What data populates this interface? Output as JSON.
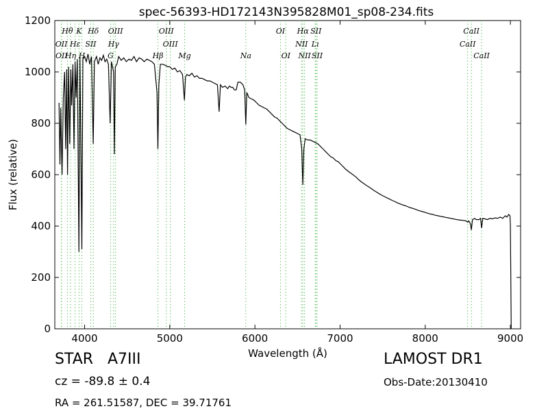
{
  "info": {
    "object_class": "STAR   A7III",
    "cz": "cz = -89.8 ± 0.4",
    "survey": "LAMOST DR1",
    "obs_date": "Obs-Date:20130410",
    "radec": "RA = 261.51587, DEC = 39.71761"
  },
  "chart_data": {
    "type": "line",
    "title": "spec-56393-HD172143N395828M01_sp08-234.fits",
    "xlabel": "Wavelength (Å)",
    "ylabel": "Flux (relative)",
    "xlim": [
      3650,
      9120
    ],
    "ylim": [
      0,
      1200
    ],
    "grid": false,
    "x_ticks": [
      4000,
      5000,
      6000,
      7000,
      8000,
      9000
    ],
    "y_ticks": [
      0,
      200,
      400,
      600,
      800,
      1000,
      1200
    ],
    "series": [
      {
        "color": "#000000",
        "points": [
          [
            3700,
            880
          ],
          [
            3710,
            640
          ],
          [
            3720,
            860
          ],
          [
            3735,
            600
          ],
          [
            3750,
            900
          ],
          [
            3765,
            1000
          ],
          [
            3778,
            700
          ],
          [
            3790,
            1010
          ],
          [
            3800,
            600
          ],
          [
            3812,
            1020
          ],
          [
            3825,
            720
          ],
          [
            3838,
            1010
          ],
          [
            3848,
            870
          ],
          [
            3862,
            1030
          ],
          [
            3875,
            700
          ],
          [
            3888,
            1040
          ],
          [
            3900,
            900
          ],
          [
            3915,
            1050
          ],
          [
            3933,
            300
          ],
          [
            3945,
            1060
          ],
          [
            3955,
            760
          ],
          [
            3968,
            310
          ],
          [
            3980,
            1050
          ],
          [
            4000,
            1060
          ],
          [
            4020,
            1040
          ],
          [
            4040,
            1070
          ],
          [
            4060,
            1030
          ],
          [
            4080,
            1060
          ],
          [
            4101,
            720
          ],
          [
            4115,
            1040
          ],
          [
            4140,
            1060
          ],
          [
            4160,
            1030
          ],
          [
            4180,
            1055
          ],
          [
            4200,
            1045
          ],
          [
            4220,
            1065
          ],
          [
            4240,
            1040
          ],
          [
            4260,
            1050
          ],
          [
            4280,
            1030
          ],
          [
            4300,
            800
          ],
          [
            4315,
            1040
          ],
          [
            4340,
            1000
          ],
          [
            4350,
            680
          ],
          [
            4360,
            1020
          ],
          [
            4380,
            1030
          ],
          [
            4400,
            1060
          ],
          [
            4430,
            1045
          ],
          [
            4460,
            1055
          ],
          [
            4490,
            1040
          ],
          [
            4520,
            1050
          ],
          [
            4550,
            1045
          ],
          [
            4580,
            1060
          ],
          [
            4610,
            1040
          ],
          [
            4640,
            1055
          ],
          [
            4670,
            1050
          ],
          [
            4700,
            1040
          ],
          [
            4730,
            1050
          ],
          [
            4760,
            1045
          ],
          [
            4790,
            1040
          ],
          [
            4820,
            1030
          ],
          [
            4850,
            920
          ],
          [
            4861,
            700
          ],
          [
            4872,
            950
          ],
          [
            4890,
            1030
          ],
          [
            4920,
            1030
          ],
          [
            4950,
            1025
          ],
          [
            4980,
            1020
          ],
          [
            5000,
            1020
          ],
          [
            5030,
            1010
          ],
          [
            5060,
            1015
          ],
          [
            5090,
            1000
          ],
          [
            5120,
            1005
          ],
          [
            5150,
            990
          ],
          [
            5172,
            890
          ],
          [
            5185,
            980
          ],
          [
            5200,
            990
          ],
          [
            5230,
            985
          ],
          [
            5260,
            995
          ],
          [
            5290,
            980
          ],
          [
            5320,
            985
          ],
          [
            5350,
            975
          ],
          [
            5380,
            975
          ],
          [
            5410,
            970
          ],
          [
            5440,
            965
          ],
          [
            5470,
            965
          ],
          [
            5500,
            960
          ],
          [
            5530,
            955
          ],
          [
            5560,
            950
          ],
          [
            5580,
            845
          ],
          [
            5595,
            950
          ],
          [
            5620,
            940
          ],
          [
            5650,
            945
          ],
          [
            5680,
            935
          ],
          [
            5700,
            945
          ],
          [
            5720,
            940
          ],
          [
            5740,
            940
          ],
          [
            5760,
            930
          ],
          [
            5780,
            930
          ],
          [
            5800,
            960
          ],
          [
            5830,
            960
          ],
          [
            5860,
            950
          ],
          [
            5880,
            930
          ],
          [
            5893,
            795
          ],
          [
            5905,
            920
          ],
          [
            5930,
            900
          ],
          [
            5960,
            895
          ],
          [
            5990,
            890
          ],
          [
            6020,
            880
          ],
          [
            6050,
            870
          ],
          [
            6080,
            865
          ],
          [
            6110,
            860
          ],
          [
            6140,
            855
          ],
          [
            6170,
            845
          ],
          [
            6200,
            835
          ],
          [
            6230,
            825
          ],
          [
            6260,
            820
          ],
          [
            6290,
            810
          ],
          [
            6320,
            800
          ],
          [
            6350,
            790
          ],
          [
            6380,
            780
          ],
          [
            6410,
            775
          ],
          [
            6440,
            770
          ],
          [
            6470,
            765
          ],
          [
            6500,
            760
          ],
          [
            6530,
            755
          ],
          [
            6550,
            700
          ],
          [
            6563,
            560
          ],
          [
            6575,
            700
          ],
          [
            6590,
            740
          ],
          [
            6620,
            735
          ],
          [
            6650,
            735
          ],
          [
            6680,
            730
          ],
          [
            6710,
            725
          ],
          [
            6740,
            720
          ],
          [
            6770,
            710
          ],
          [
            6800,
            700
          ],
          [
            6830,
            690
          ],
          [
            6860,
            680
          ],
          [
            6890,
            670
          ],
          [
            6920,
            665
          ],
          [
            6950,
            655
          ],
          [
            6980,
            650
          ],
          [
            7010,
            640
          ],
          [
            7040,
            630
          ],
          [
            7070,
            620
          ],
          [
            7100,
            612
          ],
          [
            7130,
            605
          ],
          [
            7160,
            598
          ],
          [
            7190,
            590
          ],
          [
            7220,
            580
          ],
          [
            7250,
            572
          ],
          [
            7280,
            565
          ],
          [
            7310,
            558
          ],
          [
            7340,
            552
          ],
          [
            7370,
            545
          ],
          [
            7400,
            538
          ],
          [
            7430,
            532
          ],
          [
            7460,
            526
          ],
          [
            7490,
            520
          ],
          [
            7520,
            515
          ],
          [
            7550,
            510
          ],
          [
            7580,
            505
          ],
          [
            7610,
            500
          ],
          [
            7640,
            496
          ],
          [
            7670,
            491
          ],
          [
            7700,
            487
          ],
          [
            7730,
            483
          ],
          [
            7760,
            480
          ],
          [
            7790,
            476
          ],
          [
            7820,
            472
          ],
          [
            7850,
            469
          ],
          [
            7880,
            466
          ],
          [
            7910,
            462
          ],
          [
            7940,
            459
          ],
          [
            7970,
            456
          ],
          [
            8000,
            453
          ],
          [
            8030,
            450
          ],
          [
            8060,
            447
          ],
          [
            8090,
            445
          ],
          [
            8120,
            442
          ],
          [
            8150,
            440
          ],
          [
            8180,
            438
          ],
          [
            8210,
            436
          ],
          [
            8240,
            434
          ],
          [
            8270,
            432
          ],
          [
            8300,
            430
          ],
          [
            8330,
            428
          ],
          [
            8360,
            426
          ],
          [
            8390,
            424
          ],
          [
            8420,
            423
          ],
          [
            8450,
            422
          ],
          [
            8480,
            420
          ],
          [
            8500,
            415
          ],
          [
            8510,
            420
          ],
          [
            8530,
            410
          ],
          [
            8542,
            385
          ],
          [
            8555,
            425
          ],
          [
            8580,
            430
          ],
          [
            8600,
            425
          ],
          [
            8630,
            425
          ],
          [
            8650,
            430
          ],
          [
            8662,
            392
          ],
          [
            8675,
            430
          ],
          [
            8700,
            428
          ],
          [
            8730,
            425
          ],
          [
            8760,
            430
          ],
          [
            8790,
            428
          ],
          [
            8820,
            432
          ],
          [
            8850,
            430
          ],
          [
            8880,
            435
          ],
          [
            8910,
            430
          ],
          [
            8940,
            440
          ],
          [
            8960,
            435
          ],
          [
            8980,
            445
          ],
          [
            8995,
            440
          ],
          [
            9000,
            400
          ],
          [
            9010,
            0
          ]
        ]
      }
    ],
    "lines": [
      {
        "label": "H𝜃",
        "x": 3798,
        "row": 1,
        "kind": "emission"
      },
      {
        "label": "K",
        "x": 3934,
        "row": 1,
        "kind": "emission"
      },
      {
        "label": "Hδ",
        "x": 4102,
        "row": 1,
        "kind": "emission"
      },
      {
        "label": "OIII",
        "x": 4363,
        "row": 1,
        "kind": "emission"
      },
      {
        "label": "OIII",
        "x": 4959,
        "row": 1,
        "kind": "emission"
      },
      {
        "label": "OI",
        "x": 6300,
        "row": 1,
        "kind": "emission"
      },
      {
        "label": "Hα",
        "x": 6563,
        "row": 1,
        "kind": "emission"
      },
      {
        "label": "SII",
        "x": 6717,
        "row": 1,
        "kind": "emission"
      },
      {
        "label": "CaII",
        "x": 8542,
        "row": 1,
        "kind": "absorption"
      },
      {
        "label": "OII",
        "x": 3727,
        "row": 2,
        "kind": "emission"
      },
      {
        "label": "Hε",
        "x": 3889,
        "row": 2,
        "kind": "emission"
      },
      {
        "label": "SII",
        "x": 4072,
        "row": 2,
        "kind": "emission"
      },
      {
        "label": "Hγ",
        "x": 4340,
        "row": 2,
        "kind": "emission"
      },
      {
        "label": "OIII",
        "x": 5007,
        "row": 2,
        "kind": "emission"
      },
      {
        "label": "NII",
        "x": 6548,
        "row": 2,
        "kind": "emission"
      },
      {
        "label": "Lı",
        "x": 6708,
        "row": 2,
        "kind": "emission"
      },
      {
        "label": "CaII",
        "x": 8498,
        "row": 2,
        "kind": "absorption"
      },
      {
        "label": "Hη",
        "x": 3835,
        "row": 3,
        "kind": "emission"
      },
      {
        "label": "H",
        "x": 3968,
        "row": 3,
        "kind": "emission"
      },
      {
        "label": "G",
        "x": 4305,
        "row": 3,
        "kind": "emission"
      },
      {
        "label": "Hβ",
        "x": 4861,
        "row": 3,
        "kind": "emission"
      },
      {
        "label": "Mg",
        "x": 5175,
        "row": 3,
        "kind": "absorption"
      },
      {
        "label": "Na",
        "x": 5893,
        "row": 3,
        "kind": "absorption"
      },
      {
        "label": "OI",
        "x": 6363,
        "row": 3,
        "kind": "emission"
      },
      {
        "label": "NII",
        "x": 6583,
        "row": 3,
        "kind": "emission"
      },
      {
        "label": "SII",
        "x": 6731,
        "row": 3,
        "kind": "emission"
      },
      {
        "label": "CaII",
        "x": 8662,
        "row": 3,
        "kind": "absorption"
      },
      {
        "label": "OII",
        "x": 3729,
        "row": 3,
        "kind": "emission"
      }
    ]
  }
}
